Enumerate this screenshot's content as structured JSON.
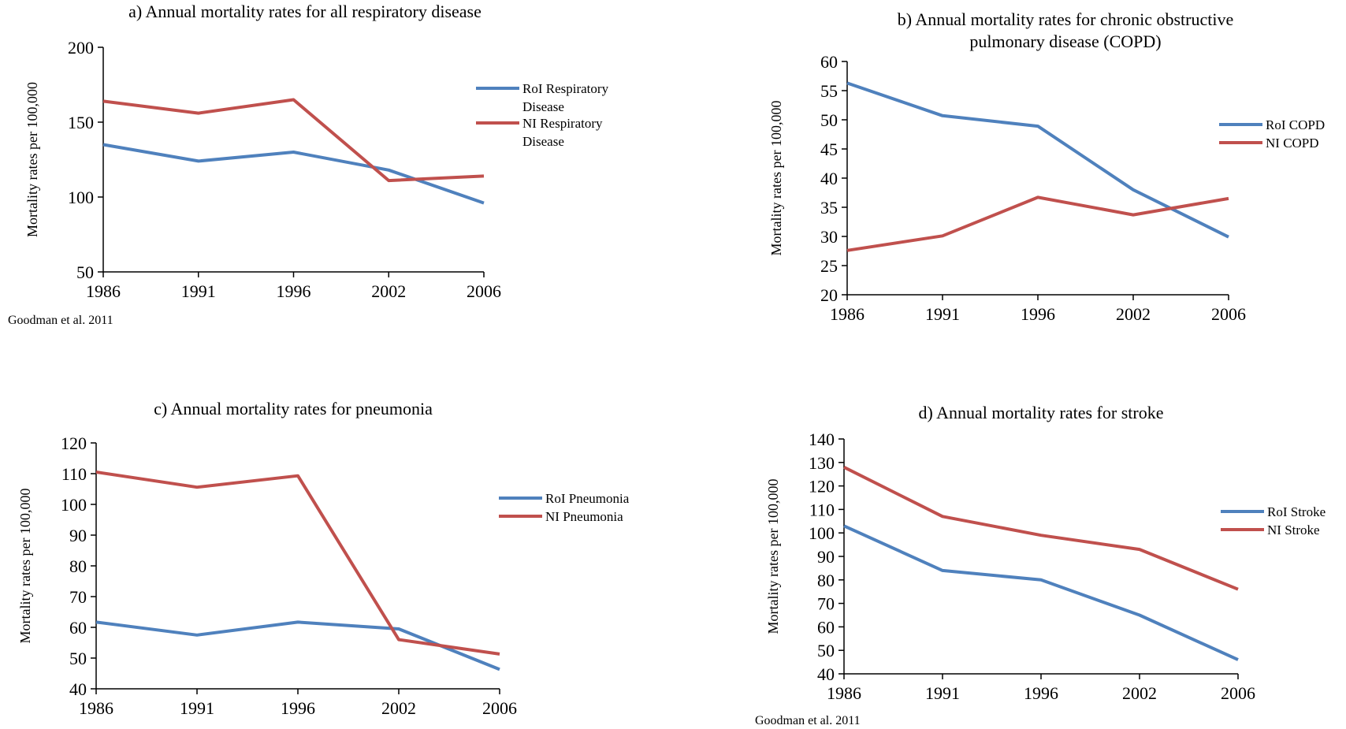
{
  "colors": {
    "roi": "#4F81BD",
    "ni": "#C0504D",
    "axis": "#000000"
  },
  "chart_data": [
    {
      "id": "a",
      "type": "line",
      "title_lines": [
        "a) Annual mortality rates for all respiratory disease"
      ],
      "ylabel": "Mortality rates per 100,000",
      "categories": [
        "1986",
        "1991",
        "1996",
        "2002",
        "2006"
      ],
      "ylim": [
        50,
        200
      ],
      "yticks": [
        50,
        100,
        150,
        200
      ],
      "series": [
        {
          "name": "RoI Respiratory Disease",
          "legend_lines": [
            "RoI Respiratory",
            "Disease"
          ],
          "values": [
            135,
            124,
            130,
            118,
            96
          ]
        },
        {
          "name": "NI Respiratory Disease",
          "legend_lines": [
            "NI Respiratory",
            "Disease"
          ],
          "values": [
            164,
            156,
            165,
            111,
            114
          ]
        }
      ],
      "source": "Goodman et al. 2011",
      "grid": false,
      "legend": "right"
    },
    {
      "id": "b",
      "type": "line",
      "title_lines": [
        "b) Annual mortality rates for chronic obstructive",
        "pulmonary disease (COPD)"
      ],
      "ylabel": "Mortality rates per 100,000",
      "categories": [
        "1986",
        "1991",
        "1996",
        "2002",
        "2006"
      ],
      "ylim": [
        20,
        60
      ],
      "yticks": [
        20,
        25,
        30,
        35,
        40,
        45,
        50,
        55,
        60
      ],
      "series": [
        {
          "name": "RoI COPD",
          "legend_lines": [
            "RoI COPD"
          ],
          "values": [
            56.3,
            50.7,
            48.9,
            38,
            29.9
          ]
        },
        {
          "name": "NI COPD",
          "legend_lines": [
            "NI COPD"
          ],
          "values": [
            27.6,
            30.1,
            36.7,
            33.7,
            36.5
          ]
        }
      ],
      "source": "",
      "grid": false,
      "legend": "right"
    },
    {
      "id": "c",
      "type": "line",
      "title_lines": [
        "c) Annual mortality rates for pneumonia"
      ],
      "ylabel": "Mortality rates per 100,000",
      "categories": [
        "1986",
        "1991",
        "1996",
        "2002",
        "2006"
      ],
      "ylim": [
        40,
        120
      ],
      "yticks": [
        40,
        50,
        60,
        70,
        80,
        90,
        100,
        110,
        120
      ],
      "series": [
        {
          "name": "RoI Pneumonia",
          "legend_lines": [
            "RoI Pneumonia"
          ],
          "values": [
            61.7,
            57.5,
            61.7,
            59.5,
            46.3
          ]
        },
        {
          "name": "NI Pneumonia",
          "legend_lines": [
            "NI Pneumonia"
          ],
          "values": [
            110.5,
            105.6,
            109.3,
            56,
            51.3
          ]
        }
      ],
      "source": "",
      "grid": false,
      "legend": "right"
    },
    {
      "id": "d",
      "type": "line",
      "title_lines": [
        "d) Annual mortality rates for stroke"
      ],
      "ylabel": "Mortality rates per 100,000",
      "categories": [
        "1986",
        "1991",
        "1996",
        "2002",
        "2006"
      ],
      "ylim": [
        40,
        140
      ],
      "yticks": [
        40,
        50,
        60,
        70,
        80,
        90,
        100,
        110,
        120,
        130,
        140
      ],
      "series": [
        {
          "name": "RoI Stroke",
          "legend_lines": [
            "RoI Stroke"
          ],
          "values": [
            103,
            84,
            80,
            65,
            46
          ]
        },
        {
          "name": "NI Stroke",
          "legend_lines": [
            "NI Stroke"
          ],
          "values": [
            128,
            107,
            99,
            93,
            76
          ]
        }
      ],
      "source": "Goodman et al. 2011",
      "grid": false,
      "legend": "right"
    }
  ]
}
